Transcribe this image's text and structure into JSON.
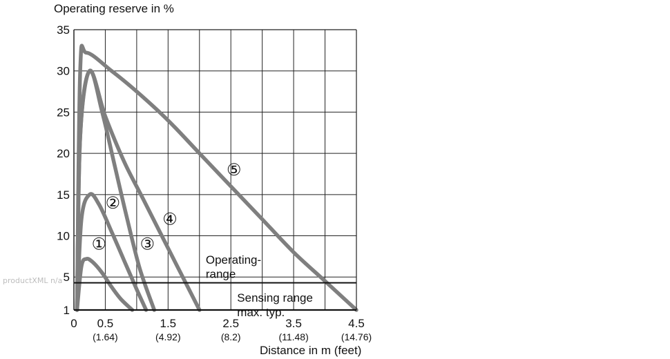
{
  "watermark": "productXML n/a",
  "chart_data": {
    "type": "line",
    "ylabel": "Operating reserve in %",
    "xlabel": "Distance in m (feet)",
    "y_ticks": [
      1,
      5,
      10,
      15,
      20,
      25,
      30,
      35
    ],
    "x_ticks": [
      {
        "value": 0,
        "label": "0",
        "sub": ""
      },
      {
        "value": 0.5,
        "label": "0.5",
        "sub": "(1.64)"
      },
      {
        "value": 1.5,
        "label": "1.5",
        "sub": "(4.92)"
      },
      {
        "value": 2.5,
        "label": "2.5",
        "sub": "(8.2)"
      },
      {
        "value": 3.5,
        "label": "3.5",
        "sub": "(11.48)"
      },
      {
        "value": 4.5,
        "label": "4.5",
        "sub": "(14.76)"
      }
    ],
    "xlim": [
      0,
      4.5
    ],
    "ylim": [
      1,
      35
    ],
    "grid": true,
    "colors": {
      "curve": "#7f7f7f",
      "grid": "#222222",
      "reference": "#111111"
    },
    "series": [
      {
        "name": "①",
        "x": [
          0.05,
          0.12,
          0.2,
          0.3,
          0.45,
          0.6,
          0.75,
          0.93
        ],
        "y": [
          1,
          6.3,
          7.2,
          6.8,
          5.5,
          3.8,
          2.3,
          1
        ]
      },
      {
        "name": "②",
        "x": [
          0.05,
          0.12,
          0.25,
          0.4,
          0.6,
          0.8,
          1.0,
          1.15
        ],
        "y": [
          1,
          12,
          15,
          13.8,
          10.5,
          7,
          3.5,
          1
        ]
      },
      {
        "name": "③",
        "x": [
          0.05,
          0.1,
          0.25,
          0.45,
          0.65,
          0.85,
          1.05,
          1.28
        ],
        "y": [
          1,
          22,
          30,
          25,
          18.5,
          12,
          6,
          1
        ]
      },
      {
        "name": "④",
        "x": [
          0.05,
          0.1,
          0.25,
          0.5,
          0.8,
          1.1,
          1.4,
          1.7,
          2.0
        ],
        "y": [
          1,
          22,
          30,
          24.5,
          19,
          14.5,
          10,
          5.5,
          1
        ]
      },
      {
        "name": "⑤",
        "x": [
          0.05,
          0.1,
          0.2,
          0.6,
          1.0,
          1.5,
          2.0,
          2.5,
          3.0,
          3.5,
          4.0,
          4.5
        ],
        "y": [
          1,
          30,
          32.2,
          30,
          27.5,
          24,
          20,
          16,
          12,
          8,
          4.5,
          1
        ]
      }
    ],
    "series_labels": [
      {
        "name": "①",
        "x": 0.4,
        "y": 9
      },
      {
        "name": "②",
        "x": 0.62,
        "y": 14
      },
      {
        "name": "③",
        "x": 1.17,
        "y": 9
      },
      {
        "name": "④",
        "x": 1.53,
        "y": 12
      },
      {
        "name": "⑤",
        "x": 2.55,
        "y": 18
      }
    ],
    "reference_lines": [
      {
        "y": 4.3,
        "label": "",
        "style": "horizontal"
      }
    ],
    "annotations": [
      {
        "text": "Operating-",
        "x": 2.1,
        "y": 7.1
      },
      {
        "text": "range",
        "x": 2.1,
        "y": 5.4
      },
      {
        "text": "Sensing range",
        "x": 2.6,
        "y": 2.5
      },
      {
        "text": "max. typ.",
        "x": 2.6,
        "y": 0.75
      }
    ]
  }
}
